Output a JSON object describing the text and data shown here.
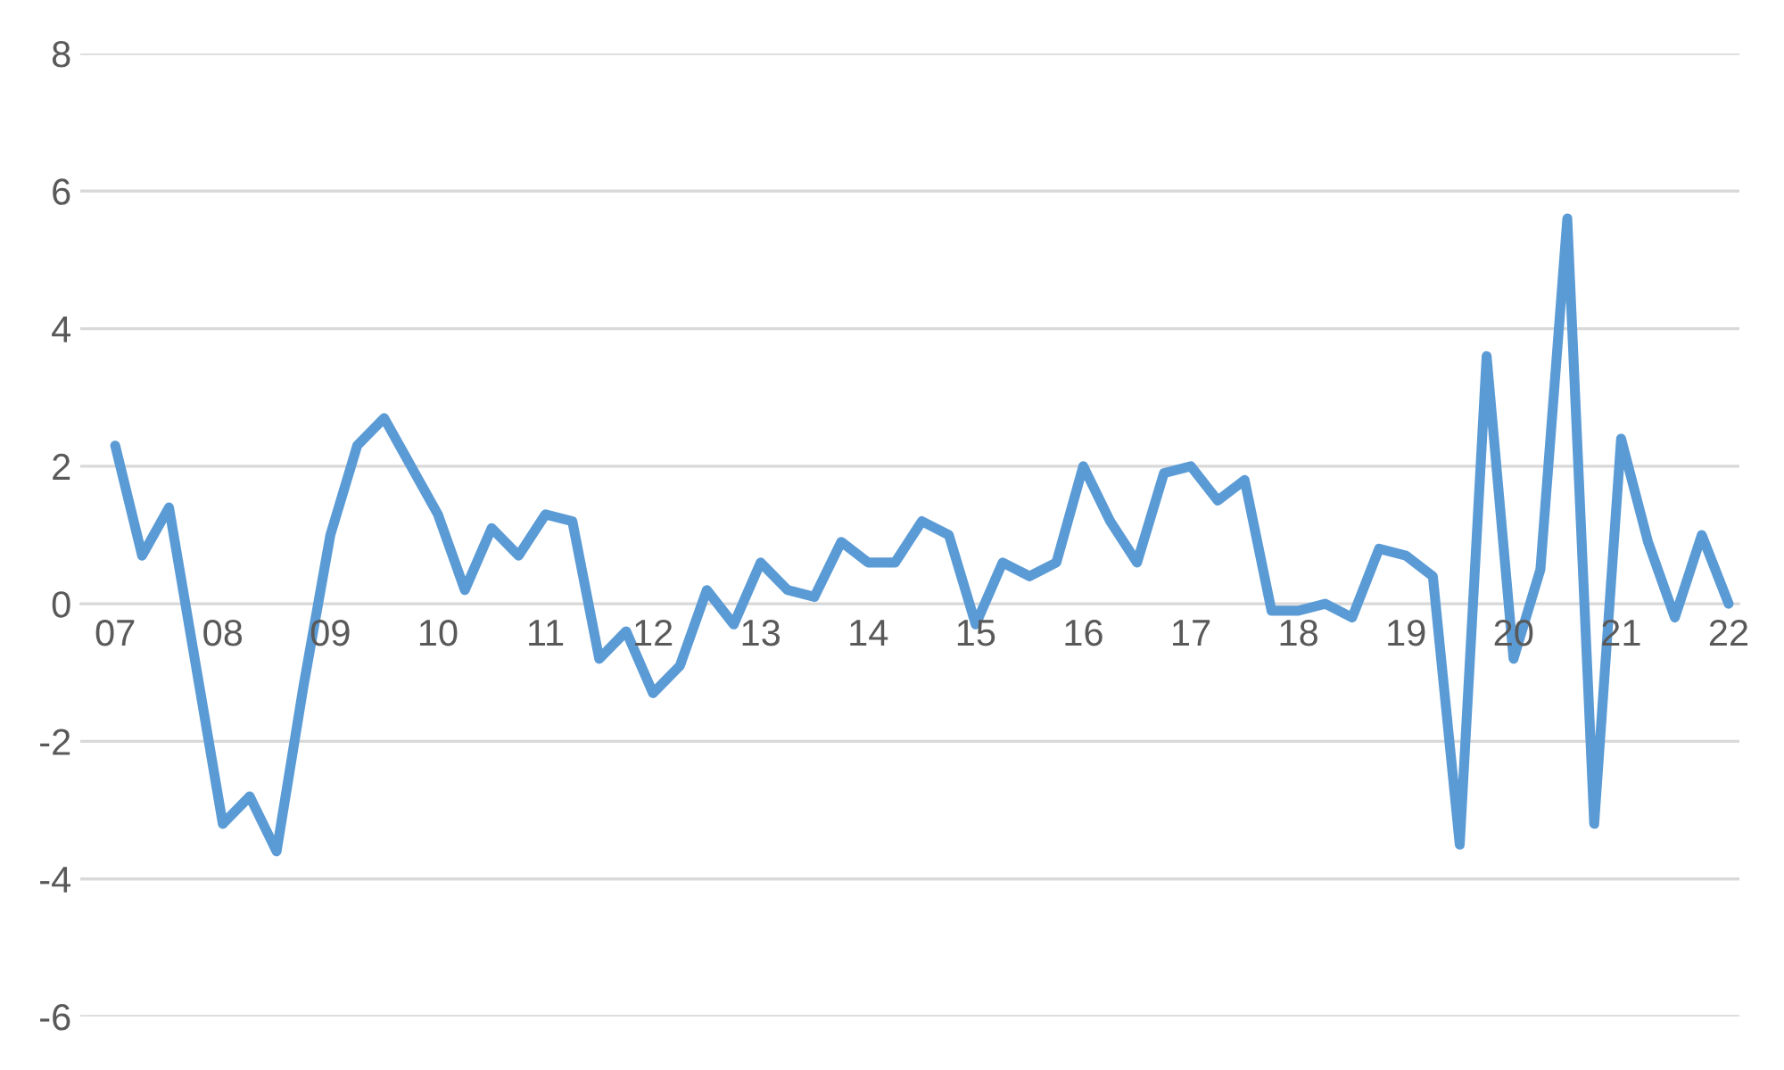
{
  "chart_data": {
    "type": "line",
    "categories": [
      "07",
      null,
      null,
      null,
      "08",
      null,
      null,
      null,
      "09",
      null,
      null,
      null,
      "10",
      null,
      null,
      null,
      "11",
      null,
      null,
      null,
      "12",
      null,
      null,
      null,
      "13",
      null,
      null,
      null,
      "14",
      null,
      null,
      null,
      "15",
      null,
      null,
      null,
      "16",
      null,
      null,
      null,
      "17",
      null,
      null,
      null,
      "18",
      null,
      null,
      null,
      "19",
      null,
      null,
      null,
      "20",
      null,
      null,
      null,
      "21",
      null,
      null,
      null,
      "22"
    ],
    "series": [
      {
        "color": "#5b9bd5",
        "values": [
          2.3,
          0.7,
          1.4,
          -0.9,
          -3.2,
          -2.8,
          -3.6,
          -1.2,
          1.0,
          2.3,
          2.7,
          2.0,
          1.3,
          0.2,
          1.1,
          0.7,
          1.3,
          1.2,
          -0.8,
          -0.4,
          -1.3,
          -0.9,
          0.2,
          -0.3,
          0.6,
          0.2,
          0.1,
          0.9,
          0.6,
          0.6,
          1.2,
          1.0,
          -0.3,
          0.6,
          0.4,
          0.6,
          2.0,
          1.2,
          0.6,
          1.9,
          2.0,
          1.5,
          1.8,
          -0.1,
          -0.1,
          0.0,
          -0.2,
          0.8,
          0.7,
          0.4,
          -3.5,
          3.6,
          -0.8,
          0.5,
          5.6,
          -3.2,
          2.4,
          0.9,
          -0.2,
          1.0,
          0.0
        ]
      }
    ],
    "ylim": [
      -6,
      8
    ],
    "yticks": [
      -6,
      -4,
      -2,
      0,
      2,
      4,
      6,
      8
    ],
    "grid": "y",
    "legend": false,
    "marker": "none",
    "line_style": "solid"
  }
}
